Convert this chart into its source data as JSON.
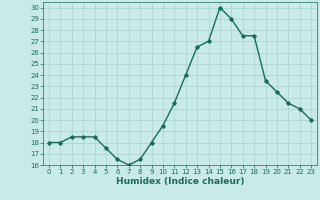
{
  "x": [
    0,
    1,
    2,
    3,
    4,
    5,
    6,
    7,
    8,
    9,
    10,
    11,
    12,
    13,
    14,
    15,
    16,
    17,
    18,
    19,
    20,
    21,
    22,
    23
  ],
  "y": [
    18,
    18,
    18.5,
    18.5,
    18.5,
    17.5,
    16.5,
    16,
    16.5,
    18,
    19.5,
    21.5,
    24,
    26.5,
    27,
    30,
    29,
    27.5,
    27.5,
    23.5,
    22.5,
    21.5,
    21,
    20
  ],
  "line_color": "#1a6b5a",
  "marker": "D",
  "marker_size": 1.8,
  "bg_color": "#c8eae8",
  "grid_color": "#aacfcc",
  "tick_color": "#1a6b5a",
  "label_color": "#1a6b5a",
  "xlabel": "Humidex (Indice chaleur)",
  "ylim": [
    16,
    30.5
  ],
  "yticks": [
    16,
    17,
    18,
    19,
    20,
    21,
    22,
    23,
    24,
    25,
    26,
    27,
    28,
    29,
    30
  ],
  "xlim": [
    -0.5,
    23.5
  ],
  "xticks": [
    0,
    1,
    2,
    3,
    4,
    5,
    6,
    7,
    8,
    9,
    10,
    11,
    12,
    13,
    14,
    15,
    16,
    17,
    18,
    19,
    20,
    21,
    22,
    23
  ],
  "tick_fontsize": 5.0,
  "xlabel_fontsize": 6.5,
  "line_width": 1.0
}
